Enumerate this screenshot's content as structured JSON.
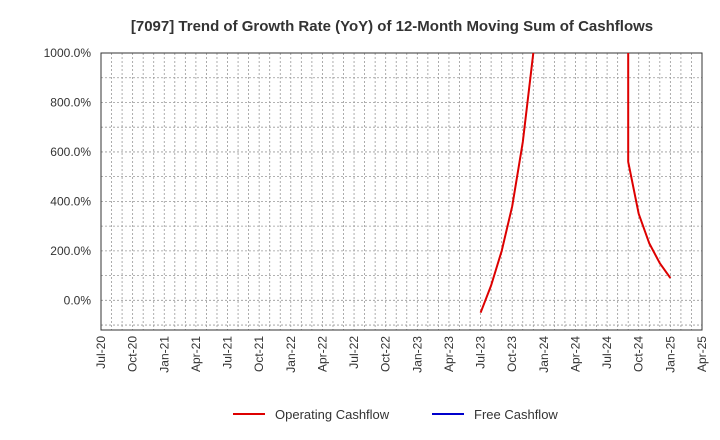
{
  "chart_data": {
    "type": "line",
    "title": "[7097]  Trend of Growth Rate (YoY) of 12-Month Moving Sum of Cashflows",
    "xlabel": "",
    "ylabel": "",
    "ylim": [
      -120,
      1000
    ],
    "y_ticks": [
      0,
      200,
      400,
      600,
      800,
      1000
    ],
    "y_tick_labels": [
      "0.0%",
      "200.0%",
      "400.0%",
      "600.0%",
      "800.0%",
      "1000.0%"
    ],
    "x_tick_labels": [
      "Jul-20",
      "Oct-20",
      "Jan-21",
      "Apr-21",
      "Jul-21",
      "Oct-21",
      "Jan-22",
      "Apr-22",
      "Jul-22",
      "Oct-22",
      "Jan-23",
      "Apr-23",
      "Jul-23",
      "Oct-23",
      "Jan-24",
      "Apr-24",
      "Jul-24",
      "Oct-24",
      "Jan-25",
      "Apr-25"
    ],
    "x_start": "Jul-20",
    "x_end": "Apr-25",
    "grid": true,
    "legend_position": "bottom",
    "series": [
      {
        "name": "Operating Cashflow",
        "color": "#dd0000",
        "points": [
          {
            "x": "Jul-23",
            "y": -50
          },
          {
            "x": "Aug-23",
            "y": 60
          },
          {
            "x": "Sep-23",
            "y": 200
          },
          {
            "x": "Oct-23",
            "y": 380
          },
          {
            "x": "Nov-23",
            "y": 640
          },
          {
            "x": "Dec-23",
            "y": 1000,
            "clipped": true
          },
          {
            "x": "Sep-24",
            "y": 1000,
            "clipped": true
          },
          {
            "x": "Sep-24",
            "y": 560
          },
          {
            "x": "Oct-24",
            "y": 350
          },
          {
            "x": "Nov-24",
            "y": 230
          },
          {
            "x": "Dec-24",
            "y": 150
          },
          {
            "x": "Jan-25",
            "y": 90
          }
        ]
      },
      {
        "name": "Free Cashflow",
        "color": "#0000cc",
        "points": []
      }
    ]
  }
}
